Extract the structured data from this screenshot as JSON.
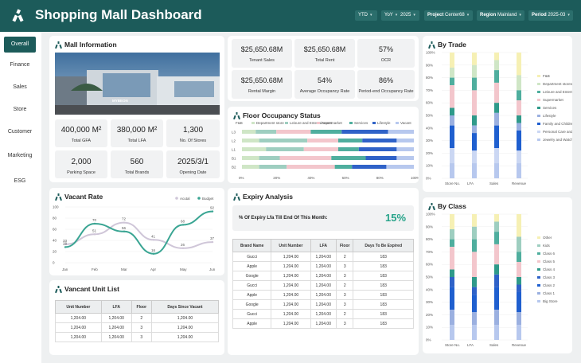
{
  "app": {
    "title": "Shopping Mall Dashboard"
  },
  "filters": [
    {
      "label": "",
      "value": "YTD"
    },
    {
      "label": "",
      "value": "YoY"
    },
    {
      "label": "",
      "value": "2025"
    },
    {
      "label": "Project",
      "value": "Center68"
    },
    {
      "label": "Region",
      "value": "Mainland"
    },
    {
      "label": "Period",
      "value": "2025-03"
    }
  ],
  "nav": [
    "Overall",
    "Finance",
    "Sales",
    "Store",
    "Customer",
    "Marketing",
    "ESG"
  ],
  "mall_info": {
    "title": "Mall Information",
    "photo_sign": "MYBEON",
    "stats": [
      {
        "value": "400,000 M²",
        "label": "Total GFA"
      },
      {
        "value": "380,000 M²",
        "label": "Total LFA"
      },
      {
        "value": "1,300",
        "label": "No. Of Stores"
      },
      {
        "value": "2,000",
        "label": "Parking Space"
      },
      {
        "value": "560",
        "label": "Total Brands"
      },
      {
        "value": "2025/3/1",
        "label": "Opening Date"
      }
    ]
  },
  "kpis": [
    {
      "value": "$25,650.68M",
      "label": "Tenant Sales"
    },
    {
      "value": "$25,650.68M",
      "label": "Total Rent"
    },
    {
      "value": "57%",
      "label": "OCR"
    },
    {
      "value": "$25,650.68M",
      "label": "Rental Margin"
    },
    {
      "value": "54%",
      "label": "Average Occupancy Rate"
    },
    {
      "value": "86%",
      "label": "Period-end Occupancy Rate"
    }
  ],
  "floor_occupancy": {
    "title": "Floor Occupancy Status",
    "legend_label": "F&B",
    "legend": [
      "Department store",
      "Leisure and Entertainment",
      "Supermarket",
      "Services",
      "Lifestyle",
      "Vacant"
    ],
    "colors": [
      "#cfe6c6",
      "#9ecec0",
      "#f3c6cc",
      "#4fae9e",
      "#2f62c8",
      "#b7c8ee"
    ],
    "floors": [
      "L3",
      "L2",
      "L1",
      "B1",
      "B2"
    ],
    "x_ticks": [
      "0%",
      "20%",
      "40%",
      "60%",
      "80%",
      "100%"
    ]
  },
  "by_trade": {
    "title": "By Trade",
    "y_ticks": [
      "100%",
      "90%",
      "80%",
      "70%",
      "60%",
      "50%",
      "40%",
      "30%",
      "20%",
      "10%",
      "0%"
    ],
    "categories": [
      "Store No.",
      "LFA",
      "Sales",
      "Revenue"
    ],
    "legend": [
      "F&B",
      "Department stores",
      "Leisure and Entertainment",
      "Supermarket",
      "Services",
      "Lifestyle",
      "Family and Children",
      "Personal Care and Beauty",
      "Jewelry and Watches"
    ],
    "colors": [
      "#f6f0b4",
      "#cfe6c6",
      "#4fae9e",
      "#f3c6cc",
      "#2f9a8a",
      "#9bb0e0",
      "#1f5fcf",
      "#cbd7f3",
      "#b7c8ee"
    ]
  },
  "by_class": {
    "title": "By Class",
    "y_ticks": [
      "100%",
      "90%",
      "80%",
      "70%",
      "60%",
      "50%",
      "40%",
      "30%",
      "20%",
      "10%",
      "0%"
    ],
    "categories": [
      "Store No.",
      "LFA",
      "Sales",
      "Revenue"
    ],
    "legend": [
      "Other",
      "Kids",
      "Class 6",
      "Class 5",
      "Class 4",
      "Class 3",
      "Class 2",
      "Class 1",
      "Big Store"
    ],
    "colors": [
      "#f6f0b4",
      "#9ecec0",
      "#4fae9e",
      "#f3c6cc",
      "#2f9a8a",
      "#2f62c8",
      "#1f5fcf",
      "#9bb0e0",
      "#b7c8ee"
    ]
  },
  "vacant_rate": {
    "title": "Vacant Rate",
    "legend": [
      "Acutal",
      "Budget"
    ],
    "chart_data": {
      "type": "line",
      "x": [
        "Jan",
        "Feb",
        "Mar",
        "Apr",
        "May",
        "Jun"
      ],
      "ylim": [
        0,
        100
      ],
      "y_ticks": [
        "100",
        "80",
        "60",
        "40",
        "20",
        "0"
      ],
      "series": [
        {
          "name": "Acutal",
          "values": [
            33,
            51,
            72,
            41,
            26,
            37
          ],
          "labels": [
            "33",
            "51",
            "72",
            "41",
            "26",
            "37"
          ]
        },
        {
          "name": "Budget",
          "values": [
            28,
            70,
            56,
            16,
            68,
            92
          ],
          "labels": [
            "28",
            "70",
            "56",
            "16",
            "68",
            "92"
          ]
        }
      ]
    }
  },
  "vacant_units": {
    "title": "Vancant Unit List",
    "headers": [
      "Unit Number",
      "LFA",
      "Floor",
      "Days Since Vacant"
    ],
    "rows": [
      [
        "1,204.00",
        "1,204.00",
        "2",
        "1,204.00"
      ],
      [
        "1,204.00",
        "1,204.00",
        "3",
        "1,204.00"
      ],
      [
        "1,204.00",
        "1,204.00",
        "3",
        "1,204.00"
      ]
    ]
  },
  "expiry": {
    "title": "Expiry Analysis",
    "summary_label": "% Of Expiry Lfa Till End Of This Month:",
    "summary_value": "15%",
    "headers": [
      "Brand Name",
      "Unit Number",
      "LFA",
      "Floor",
      "Days To Be Expired"
    ],
    "rows": [
      [
        "Gucci",
        "1,204.00",
        "1,204.00",
        "2",
        "183"
      ],
      [
        "Apple",
        "1,204.00",
        "1,204.00",
        "3",
        "183"
      ],
      [
        "Google",
        "1,204.00",
        "1,204.00",
        "3",
        "183"
      ],
      [
        "Gucci",
        "1,204.00",
        "1,204.00",
        "2",
        "183"
      ],
      [
        "Apple",
        "1,204.00",
        "1,204.00",
        "3",
        "183"
      ],
      [
        "Google",
        "1,204.00",
        "1,204.00",
        "3",
        "183"
      ],
      [
        "Gucci",
        "1,204.00",
        "1,204.00",
        "2",
        "183"
      ],
      [
        "Apple",
        "1,204.00",
        "1,204.00",
        "3",
        "183"
      ]
    ]
  }
}
